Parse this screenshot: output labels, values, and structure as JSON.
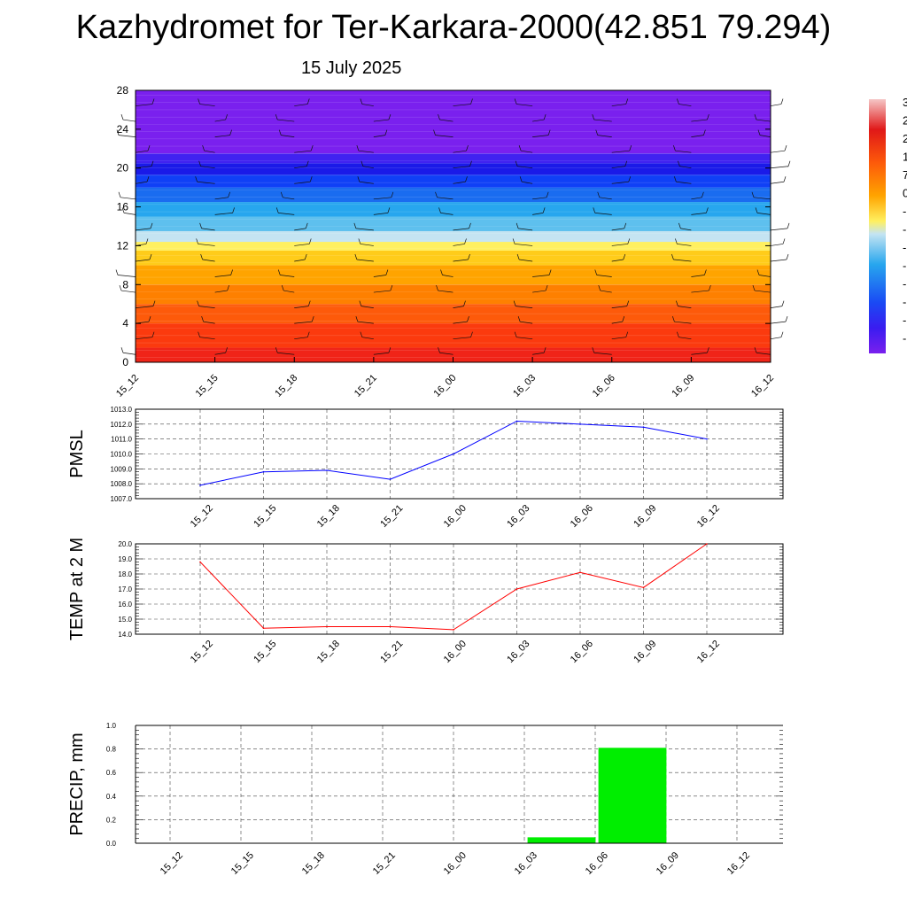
{
  "title": "Kazhydromet for Ter-Karkara-2000(42.851 79.294)",
  "subtitle": "15 July 2025",
  "chart_data": [
    {
      "type": "heatmap",
      "name": "temperature-height-cross-section",
      "x_ticks": [
        "15_12",
        "15_15",
        "15_18",
        "15_21",
        "16_00",
        "16_03",
        "16_06",
        "16_09",
        "16_12"
      ],
      "y_ticks": [
        0,
        4,
        8,
        12,
        16,
        20,
        24,
        28
      ],
      "ylim": [
        0,
        28
      ],
      "colorbar_labels": [
        "3",
        "2",
        "2",
        "1",
        "7",
        "0",
        "-",
        "-",
        "-",
        "-",
        "-",
        "-",
        "-",
        "-"
      ],
      "bands": [
        {
          "from": 0,
          "to": 1.5,
          "color": "#f02418"
        },
        {
          "from": 1.5,
          "to": 4,
          "color": "#fb3a0e"
        },
        {
          "from": 4,
          "to": 6,
          "color": "#fd5a0a"
        },
        {
          "from": 6,
          "to": 8,
          "color": "#fe8000"
        },
        {
          "from": 8,
          "to": 10,
          "color": "#ffa400"
        },
        {
          "from": 10,
          "to": 11.5,
          "color": "#ffcc1a"
        },
        {
          "from": 11.5,
          "to": 12.4,
          "color": "#fff060"
        },
        {
          "from": 12.4,
          "to": 13.5,
          "color": "#c4e4f2"
        },
        {
          "from": 13.5,
          "to": 15,
          "color": "#5ec0ee"
        },
        {
          "from": 15,
          "to": 16.5,
          "color": "#27a6ee"
        },
        {
          "from": 16.5,
          "to": 18,
          "color": "#1a6cf0"
        },
        {
          "from": 18,
          "to": 19.3,
          "color": "#1040f6"
        },
        {
          "from": 19.3,
          "to": 20.5,
          "color": "#1a1ae8"
        },
        {
          "from": 20.5,
          "to": 21.5,
          "color": "#4022f0"
        },
        {
          "from": 21.5,
          "to": 28,
          "color": "#7a20ee"
        }
      ]
    },
    {
      "type": "line",
      "name": "pmsl",
      "ylabel": "PMSL",
      "categories": [
        "15_12",
        "15_15",
        "15_18",
        "15_21",
        "16_00",
        "16_03",
        "16_06",
        "16_09",
        "16_12"
      ],
      "values": [
        1007.9,
        1008.8,
        1008.9,
        1008.3,
        1010.0,
        1012.2,
        1012.0,
        1011.8,
        1011.0
      ],
      "ylim": [
        1007.0,
        1013.0
      ],
      "y_ticks": [
        "1007.0",
        "1008.0",
        "1009.0",
        "1010.0",
        "1011.0",
        "1012.0",
        "1013.0"
      ],
      "color": "#0000ff",
      "grid": true
    },
    {
      "type": "line",
      "name": "temp-2m",
      "ylabel": "TEMP at 2 M",
      "categories": [
        "15_12",
        "15_15",
        "15_18",
        "15_21",
        "16_00",
        "16_03",
        "16_06",
        "16_09",
        "16_12"
      ],
      "values": [
        18.8,
        14.4,
        14.5,
        14.5,
        14.3,
        17.0,
        18.1,
        17.1,
        20.0
      ],
      "ylim": [
        14.0,
        20.0
      ],
      "y_ticks": [
        "14.0",
        "15.0",
        "16.0",
        "17.0",
        "18.0",
        "19.0",
        "20.0"
      ],
      "color": "#ff0000",
      "grid": true
    },
    {
      "type": "bar",
      "name": "precip",
      "ylabel": "PRECIP, mm",
      "categories": [
        "15_12",
        "15_15",
        "15_18",
        "15_21",
        "16_00",
        "16_03",
        "16_06",
        "16_09",
        "16_12"
      ],
      "values": [
        0,
        0,
        0,
        0,
        0,
        0,
        0.05,
        0.81,
        0
      ],
      "ylim": [
        0,
        1.0
      ],
      "y_ticks": [
        "0.0",
        "0.2",
        "0.4",
        "0.6",
        "0.8",
        "1.0"
      ],
      "color": "#00ee00",
      "grid": true
    }
  ]
}
